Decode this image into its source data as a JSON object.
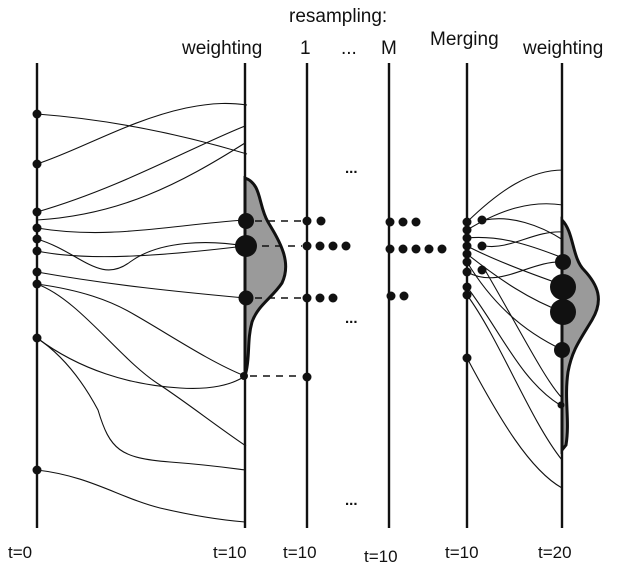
{
  "headers": {
    "weighting_1": "weighting",
    "resampling": "resampling:",
    "resample_first": "1",
    "resample_ellipsis": "...",
    "resample_last": "M",
    "merging": "Merging",
    "weighting_2": "weighting"
  },
  "time_labels": [
    "t=0",
    "t=10",
    "t=10",
    "t=10",
    "t=10",
    "t=20"
  ],
  "ellipsis": "...",
  "colors": {
    "line": "#111111",
    "weight_fill": "#9a9a9a"
  }
}
